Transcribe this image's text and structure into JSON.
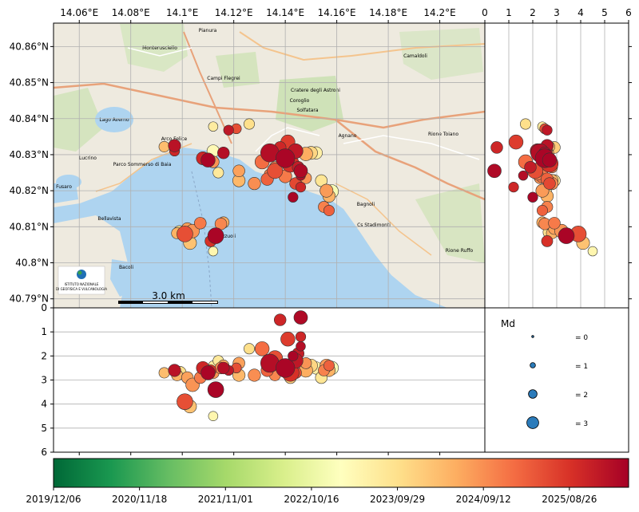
{
  "chart_data": [
    {
      "type": "scatter",
      "panel": "map",
      "x_ticks": [
        "14.06°E",
        "14.08°E",
        "14.1°E",
        "14.12°E",
        "14.14°E",
        "14.16°E",
        "14.18°E",
        "14.2°E"
      ],
      "x_tick_values": [
        14.06,
        14.08,
        14.1,
        14.12,
        14.14,
        14.16,
        14.18,
        14.2
      ],
      "y_ticks": [
        "40.86°N",
        "40.85°N",
        "40.84°N",
        "40.83°N",
        "40.82°N",
        "40.81°N",
        "40.8°N",
        "40.79°N"
      ],
      "y_tick_values": [
        40.86,
        40.85,
        40.84,
        40.83,
        40.82,
        40.81,
        40.8,
        40.79
      ],
      "xlim": [
        14.05,
        14.2175
      ],
      "ylim": [
        40.7875,
        40.8665
      ],
      "grid": true,
      "scalebar_label": "3.0 km",
      "map_labels": [
        "Monterusciello",
        "Arco Felice",
        "Agnano",
        "Bagnoli",
        "Bellavista",
        "Bacoli",
        "Lago Averno",
        "Fusaro",
        "Campi Flegrei",
        "Coroglio",
        "Camaldoli",
        "Pianura",
        "Cs Stadimonti",
        "Rione Toiano",
        "Parco Sommerso di Baia",
        "Solfatara",
        "Pozzuoli",
        "Lucrino",
        "Cratere degli Astroni",
        "Rione Ruffo"
      ],
      "logo_text": [
        "ISTITUTO NAZIONALE",
        "DI GEOFISICA E VULCANOLOGIA"
      ]
    },
    {
      "type": "scatter",
      "panel": "depth-vs-latitude",
      "x_ticks": [
        "0",
        "1",
        "2",
        "3",
        "4",
        "5",
        "6"
      ],
      "x_tick_values": [
        0,
        1,
        2,
        3,
        4,
        5,
        6
      ],
      "xlim": [
        0,
        6
      ],
      "grid": true
    },
    {
      "type": "scatter",
      "panel": "depth-vs-longitude",
      "y_ticks": [
        "0",
        "1",
        "2",
        "3",
        "4",
        "5",
        "6"
      ],
      "y_tick_values": [
        0,
        1,
        2,
        3,
        4,
        5,
        6
      ],
      "ylim": [
        6,
        0
      ],
      "grid": true
    },
    {
      "type": "scatter",
      "panel": "events",
      "fields": [
        "lon",
        "lat",
        "depth_km",
        "Md",
        "t"
      ],
      "events": [
        [
          14.134,
          40.8305,
          2.3,
          2.7,
          0.97
        ],
        [
          14.14,
          40.829,
          2.5,
          2.8,
          0.99
        ],
        [
          14.142,
          40.8275,
          2.7,
          2.5,
          0.9
        ],
        [
          14.136,
          40.8255,
          2.1,
          2.2,
          0.85
        ],
        [
          14.131,
          40.828,
          1.7,
          2.0,
          0.8
        ],
        [
          14.144,
          40.831,
          2.2,
          2.1,
          0.95
        ],
        [
          14.146,
          40.8255,
          0.4,
          1.9,
          0.98
        ],
        [
          14.138,
          40.832,
          0.5,
          1.6,
          0.92
        ],
        [
          14.128,
          40.822,
          2.8,
          1.7,
          0.75
        ],
        [
          14.122,
          40.8255,
          2.3,
          1.6,
          0.72
        ],
        [
          14.141,
          40.8335,
          1.3,
          2.0,
          0.88
        ],
        [
          14.126,
          40.8385,
          1.7,
          1.4,
          0.6
        ],
        [
          14.14,
          40.824,
          2.4,
          1.8,
          0.78
        ],
        [
          14.148,
          40.8302,
          2.6,
          1.9,
          0.7
        ],
        [
          14.15,
          40.8305,
          2.4,
          1.8,
          0.62
        ],
        [
          14.152,
          40.8305,
          2.5,
          1.7,
          0.55
        ],
        [
          14.144,
          40.822,
          2.7,
          1.6,
          0.86
        ],
        [
          14.133,
          40.8232,
          2.6,
          1.7,
          0.82
        ],
        [
          14.122,
          40.8228,
          2.8,
          1.7,
          0.68
        ],
        [
          14.134,
          40.8245,
          2.2,
          1.5,
          0.78
        ],
        [
          14.148,
          40.8235,
          2.3,
          1.5,
          0.74
        ],
        [
          14.145,
          40.8265,
          1.9,
          1.6,
          0.94
        ],
        [
          14.156,
          40.82,
          2.4,
          1.8,
          0.73
        ],
        [
          14.158,
          40.8198,
          2.5,
          1.9,
          0.48
        ],
        [
          14.157,
          40.8185,
          2.6,
          1.7,
          0.69
        ],
        [
          14.154,
          40.8228,
          2.9,
          1.6,
          0.58
        ],
        [
          14.155,
          40.8155,
          2.6,
          1.5,
          0.77
        ],
        [
          14.157,
          40.8145,
          2.4,
          1.4,
          0.82
        ],
        [
          14.146,
          40.821,
          1.2,
          1.3,
          0.92
        ],
        [
          14.143,
          40.8182,
          2.0,
          1.3,
          0.99
        ],
        [
          14.146,
          40.8242,
          1.6,
          1.2,
          0.97
        ],
        [
          14.136,
          40.8265,
          2.8,
          1.5,
          0.76
        ],
        [
          14.142,
          40.832,
          2.9,
          1.6,
          0.64
        ],
        [
          14.11,
          40.8285,
          2.7,
          2.0,
          0.99
        ],
        [
          14.108,
          40.829,
          2.5,
          1.8,
          0.92
        ],
        [
          14.112,
          40.828,
          2.7,
          1.6,
          0.74
        ],
        [
          14.114,
          40.825,
          2.2,
          1.4,
          0.57
        ],
        [
          14.112,
          40.831,
          2.6,
          1.7,
          0.52
        ],
        [
          14.116,
          40.8305,
          2.5,
          1.6,
          0.97
        ],
        [
          14.118,
          40.8368,
          2.6,
          1.3,
          0.95
        ],
        [
          14.121,
          40.8372,
          2.5,
          1.3,
          0.85
        ],
        [
          14.112,
          40.8378,
          2.4,
          1.2,
          0.56
        ],
        [
          14.097,
          40.8325,
          2.6,
          1.7,
          0.96
        ],
        [
          14.093,
          40.8322,
          2.7,
          1.4,
          0.67
        ],
        [
          14.097,
          40.831,
          2.6,
          1.3,
          0.92
        ],
        [
          14.101,
          40.808,
          3.9,
          2.3,
          0.85
        ],
        [
          14.104,
          40.8088,
          3.2,
          1.9,
          0.74
        ],
        [
          14.113,
          40.8075,
          3.4,
          2.3,
          0.99
        ],
        [
          14.111,
          40.806,
          2.6,
          1.5,
          0.9
        ],
        [
          14.107,
          40.811,
          2.9,
          1.6,
          0.78
        ],
        [
          14.103,
          40.8055,
          4.1,
          1.8,
          0.66
        ],
        [
          14.099,
          40.8085,
          2.7,
          1.8,
          0.6
        ],
        [
          14.098,
          40.8082,
          2.8,
          1.5,
          0.69
        ],
        [
          14.102,
          40.8095,
          2.9,
          1.6,
          0.72
        ],
        [
          14.116,
          40.8112,
          2.4,
          1.5,
          0.7
        ],
        [
          14.115,
          40.8108,
          2.5,
          1.6,
          0.76
        ],
        [
          14.112,
          40.8032,
          4.5,
          1.2,
          0.53
        ]
      ]
    },
    {
      "type": "legend",
      "title": "Md",
      "entries": [
        {
          "label": "= 0",
          "value": 0
        },
        {
          "label": "= 1",
          "value": 1
        },
        {
          "label": "= 2",
          "value": 2
        },
        {
          "label": "= 3",
          "value": 3
        }
      ]
    },
    {
      "type": "colorbar",
      "colormap": "RdYlGn_r",
      "tick_labels": [
        "2019/12/06",
        "2020/11/18",
        "2021/11/01",
        "2022/10/16",
        "2023/09/29",
        "2024/09/12",
        "2025/08/26"
      ]
    }
  ]
}
